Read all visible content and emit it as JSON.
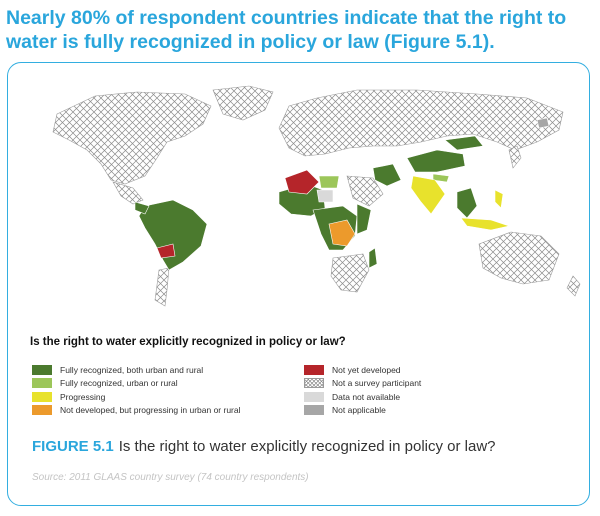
{
  "headline": "Nearly 80% of respondent countries indicate that the right to water is fully recognized in policy or law (Figure 5.1).",
  "map": {
    "legend_title": "Is the right to water explicitly recognized in policy or law?",
    "legend": [
      {
        "label": "Fully recognized, both urban and rural",
        "color": "#4b7a2e",
        "pattern": "solid"
      },
      {
        "label": "Fully recognized, urban or rural",
        "color": "#9cc65a",
        "pattern": "solid"
      },
      {
        "label": "Progressing",
        "color": "#e8e22c",
        "pattern": "solid"
      },
      {
        "label": "Not developed, but progressing in urban or rural",
        "color": "#ec9a2c",
        "pattern": "solid"
      },
      {
        "label": "Not yet developed",
        "color": "#b5252a",
        "pattern": "solid"
      },
      {
        "label": "Not a survey participant",
        "color": "#ffffff",
        "pattern": "hatch"
      },
      {
        "label": "Data not available",
        "color": "#d9d9d9",
        "pattern": "solid"
      },
      {
        "label": "Not applicable",
        "color": "#a6a6a6",
        "pattern": "solid"
      }
    ]
  },
  "caption": {
    "figure_label": "FIGURE 5.1",
    "text": "Is the right to water explicitly recognized in policy or law?"
  },
  "source": "Source: 2011 GLAAS country survey (74 country respondents)",
  "colors": {
    "accent": "#2aa6dc",
    "border": "#33aee0",
    "ocean": "#ffffff"
  }
}
